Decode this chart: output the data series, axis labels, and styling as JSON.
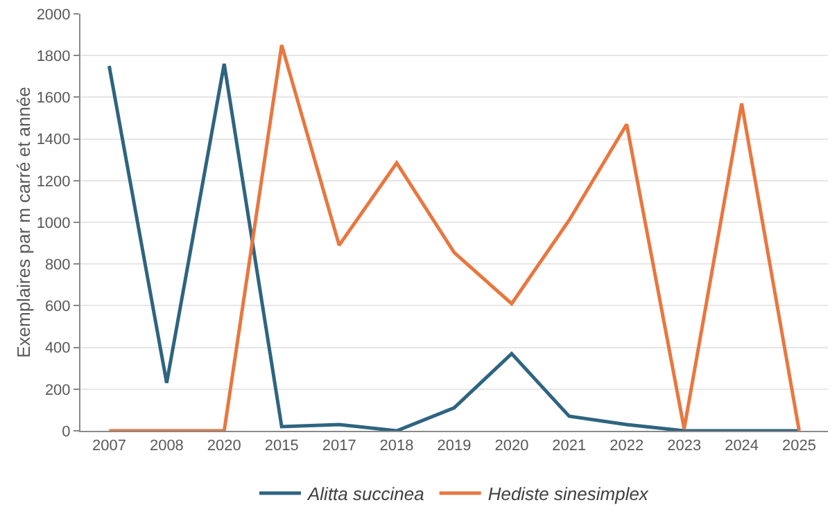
{
  "chart_data": {
    "type": "line",
    "ylabel": "Exemplaires par m carré et année",
    "categories": [
      "2007",
      "2008",
      "2020",
      "2015",
      "2017",
      "2018",
      "2019",
      "2020",
      "2021",
      "2022",
      "2023",
      "2024",
      "2025"
    ],
    "series": [
      {
        "name": "Alitta succinea",
        "color": "#2e6480",
        "values": [
          1750,
          230,
          1760,
          20,
          30,
          0,
          110,
          370,
          70,
          30,
          0,
          0,
          0
        ]
      },
      {
        "name": "Hediste sinesimplex",
        "color": "#e8773f",
        "values": [
          0,
          0,
          0,
          1850,
          890,
          1285,
          855,
          610,
          1010,
          1470,
          10,
          1570,
          0
        ]
      }
    ],
    "ylim": [
      0,
      2000
    ],
    "yticks": [
      0,
      200,
      400,
      600,
      800,
      1000,
      1200,
      1400,
      1600,
      1800,
      2000
    ],
    "grid": "y",
    "legend": "bottom",
    "marker": "none",
    "line_style": "solid"
  }
}
